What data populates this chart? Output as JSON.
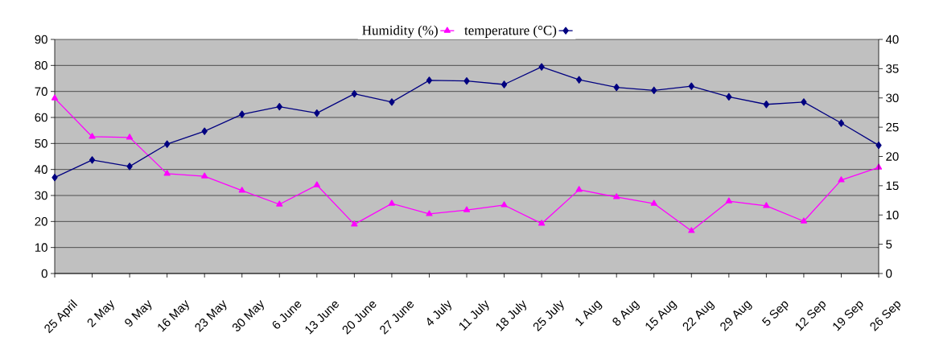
{
  "chart_data": {
    "type": "line",
    "categories": [
      "25 April",
      "2 May",
      "9 May",
      "16 May",
      "23 May",
      "30 May",
      "6 June",
      "13 June",
      "20 June",
      "27 June",
      "4 July",
      "11 July",
      "18 July",
      "25 July",
      "1 Aug",
      "8 Aug",
      "15 Aug",
      "22 Aug",
      "29 Aug",
      "5 Sep",
      "12 Sep",
      "19 Sep",
      "26 Sep"
    ],
    "series": [
      {
        "name": "Humidity (%)",
        "color": "#ff00ff",
        "marker": "triangle",
        "values": [
          67.4,
          52.6,
          52.3,
          38.4,
          37.4,
          31.9,
          26.6,
          34,
          18.9,
          26.9,
          22.9,
          24.4,
          26.3,
          19.2,
          32.2,
          29.4,
          26.9,
          16.4,
          27.8,
          26,
          20.1,
          35.9,
          40.8
        ]
      },
      {
        "name": "temperature (°C)",
        "color": "#000080",
        "marker": "diamond",
        "axis": "y2",
        "values": [
          16.4,
          19.4,
          18.3,
          22.1,
          24.3,
          27.2,
          28.5,
          27.4,
          30.7,
          29.3,
          33,
          32.9,
          32.3,
          35.3,
          33.1,
          31.8,
          31.3,
          32,
          30.2,
          28.9,
          29.3,
          25.7,
          21.9
        ]
      }
    ],
    "ylim": [
      0,
      90
    ],
    "yticks": [
      0,
      10,
      20,
      30,
      40,
      50,
      60,
      70,
      80,
      90
    ],
    "y2lim": [
      0,
      40
    ],
    "y2ticks": [
      0,
      5,
      10,
      15,
      20,
      25,
      30,
      35,
      40
    ],
    "grid": "y",
    "legend": "top",
    "line_style": "solid"
  }
}
